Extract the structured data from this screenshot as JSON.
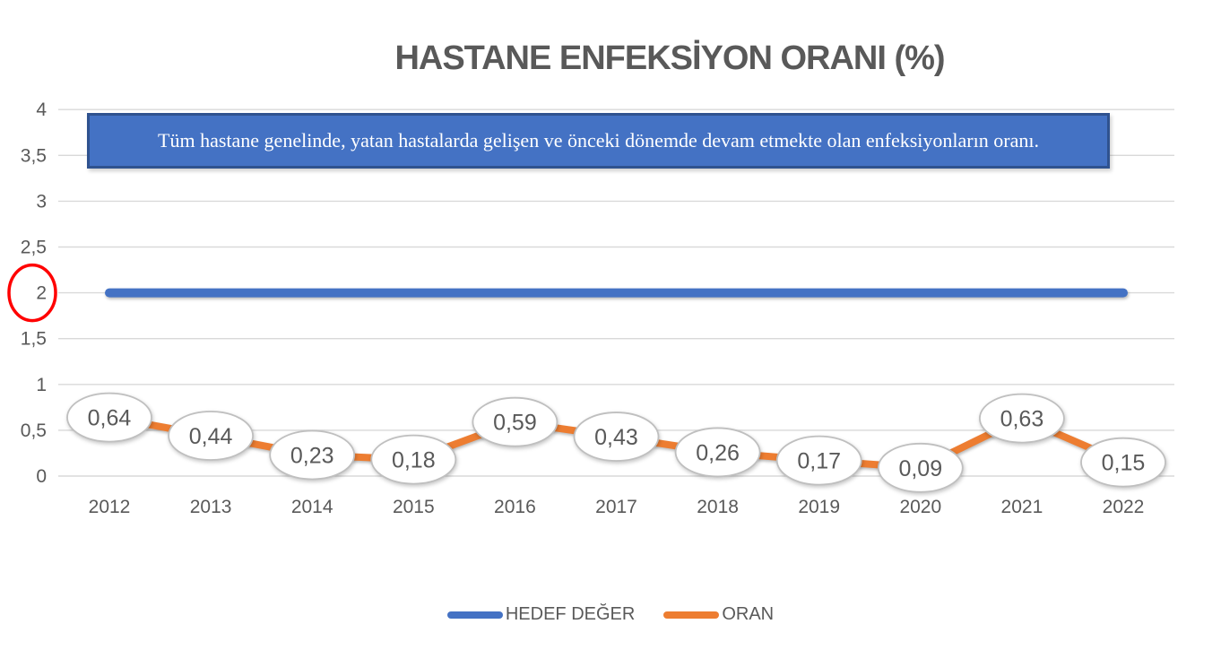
{
  "chart": {
    "title": "HASTANE ENFEKSİYON ORANI (%)",
    "description": "Tüm hastane genelinde, yatan hastalarda gelişen ve önceki dönemde devam etmekte olan enfeksiyonların oranı.",
    "legend": [
      {
        "label": "HEDEF DEĞER",
        "color": "#4472C4"
      },
      {
        "label": "ORAN",
        "color": "#ED7D31"
      }
    ]
  },
  "chart_data": {
    "type": "line",
    "title": "HASTANE ENFEKSİYON ORANI (%)",
    "categories": [
      "2012",
      "2013",
      "2014",
      "2015",
      "2016",
      "2017",
      "2018",
      "2019",
      "2020",
      "2021",
      "2022"
    ],
    "series": [
      {
        "name": "HEDEF DEĞER",
        "color": "#4472C4",
        "values": [
          2,
          2,
          2,
          2,
          2,
          2,
          2,
          2,
          2,
          2,
          2
        ]
      },
      {
        "name": "ORAN",
        "color": "#ED7D31",
        "values": [
          0.64,
          0.44,
          0.23,
          0.18,
          0.59,
          0.43,
          0.26,
          0.17,
          0.09,
          0.63,
          0.15
        ],
        "labels": [
          "0,64",
          "0,44",
          "0,23",
          "0,18",
          "0,59",
          "0,43",
          "0,26",
          "0,17",
          "0,09",
          "0,63",
          "0,15"
        ]
      }
    ],
    "ylim": [
      0,
      4
    ],
    "ytick_step": 0.5,
    "ytick_labels": [
      "0",
      "0,5",
      "1",
      "1,5",
      "2",
      "2,5",
      "3",
      "3,5",
      "4"
    ],
    "xlabel": "",
    "ylabel": "",
    "grid": true,
    "legend_position": "bottom",
    "gridline_color": "#D9D9D9",
    "bubble_stroke_color": "#BFBFBF",
    "annotation": {
      "type": "circle",
      "around": "y-axis tick label 2",
      "color": "#FF0000"
    }
  }
}
